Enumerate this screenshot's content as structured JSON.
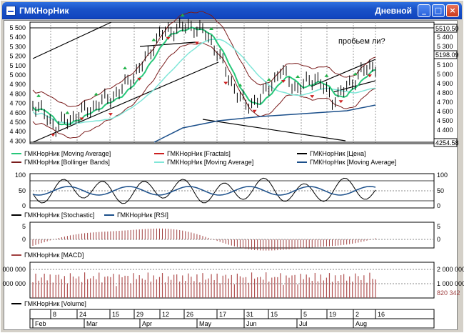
{
  "window": {
    "title": "ГМКНорНик",
    "period": "Дневной",
    "buttons": {
      "minimize": "_",
      "maximize": "□",
      "close": "×"
    }
  },
  "colors": {
    "ma_fast": "#27c77a",
    "fractal_up": "#21b34a",
    "fractal_down": "#cc2020",
    "price": "#000000",
    "bollinger": "#7a1c1c",
    "ma_mid": "#7fe6d8",
    "ma_slow": "#1b4f8a",
    "macd": "#a04040",
    "volume": "#b05050",
    "rsi": "#1b4f8a",
    "stochastic": "#000000"
  },
  "price_panel": {
    "annotation": "пробьем ли?",
    "y_ticks": [
      "5 500",
      "5 400",
      "5 300",
      "5 200",
      "5 100",
      "5 000",
      "4 900",
      "4 800",
      "4 700",
      "4 600",
      "4 500",
      "4 400",
      "4 300"
    ],
    "right_ticks": [
      "5 400",
      "5 300",
      "5 100",
      "5 000",
      "4 900",
      "4 800",
      "4 700",
      "4 600",
      "4 500",
      "4 400"
    ],
    "last_high_label": "5510.50",
    "last_price_label": "5198.09",
    "last_low_label": "4254.58",
    "legend": [
      {
        "label": "ГМКНорНик [Moving Average]",
        "color": "#27c77a"
      },
      {
        "label": "ГМКНорНик [Fractals]",
        "color": "#cc2020"
      },
      {
        "label": "ГМКНорНик [Цена]",
        "color": "#000000"
      },
      {
        "label": "ГМКНорНик [Bollinger Bands]",
        "color": "#7a1c1c"
      },
      {
        "label": "ГМКНорНик [Moving Average]",
        "color": "#7fe6d8"
      },
      {
        "label": "ГМКНорНик [Moving Average]",
        "color": "#1b4f8a"
      }
    ]
  },
  "osc_panel": {
    "y_ticks_left": [
      "100",
      "50",
      "0"
    ],
    "y_ticks_right": [
      "100",
      "50",
      "0"
    ],
    "legend": [
      {
        "label": "ГМКНорНик [Stochastic]",
        "color": "#000000"
      },
      {
        "label": "ГМКНорНик [RSI]",
        "color": "#1b4f8a"
      }
    ]
  },
  "macd_panel": {
    "y_ticks_left": [
      "5",
      "0"
    ],
    "y_ticks_right": [
      "5",
      "0"
    ],
    "legend": [
      {
        "label": "ГМКНорНик [MACD]",
        "color": "#a04040"
      }
    ]
  },
  "volume_panel": {
    "y_ticks_left": [
      "000 000",
      "000 000"
    ],
    "y_ticks_right": [
      "2 000 000",
      "1 000 000"
    ],
    "last_volume_label": "820 342",
    "legend": [
      {
        "label": "ГМКНорНик [Volume]",
        "color": "#000000"
      }
    ]
  },
  "time_axis": {
    "days": [
      "8",
      "24",
      "15",
      "29",
      "12",
      "26",
      "17",
      "31",
      "15",
      "5",
      "19",
      "2",
      "16"
    ],
    "months": [
      "Feb",
      "Mar",
      "Apr",
      "May",
      "Jun",
      "Jul",
      "Aug"
    ]
  }
}
